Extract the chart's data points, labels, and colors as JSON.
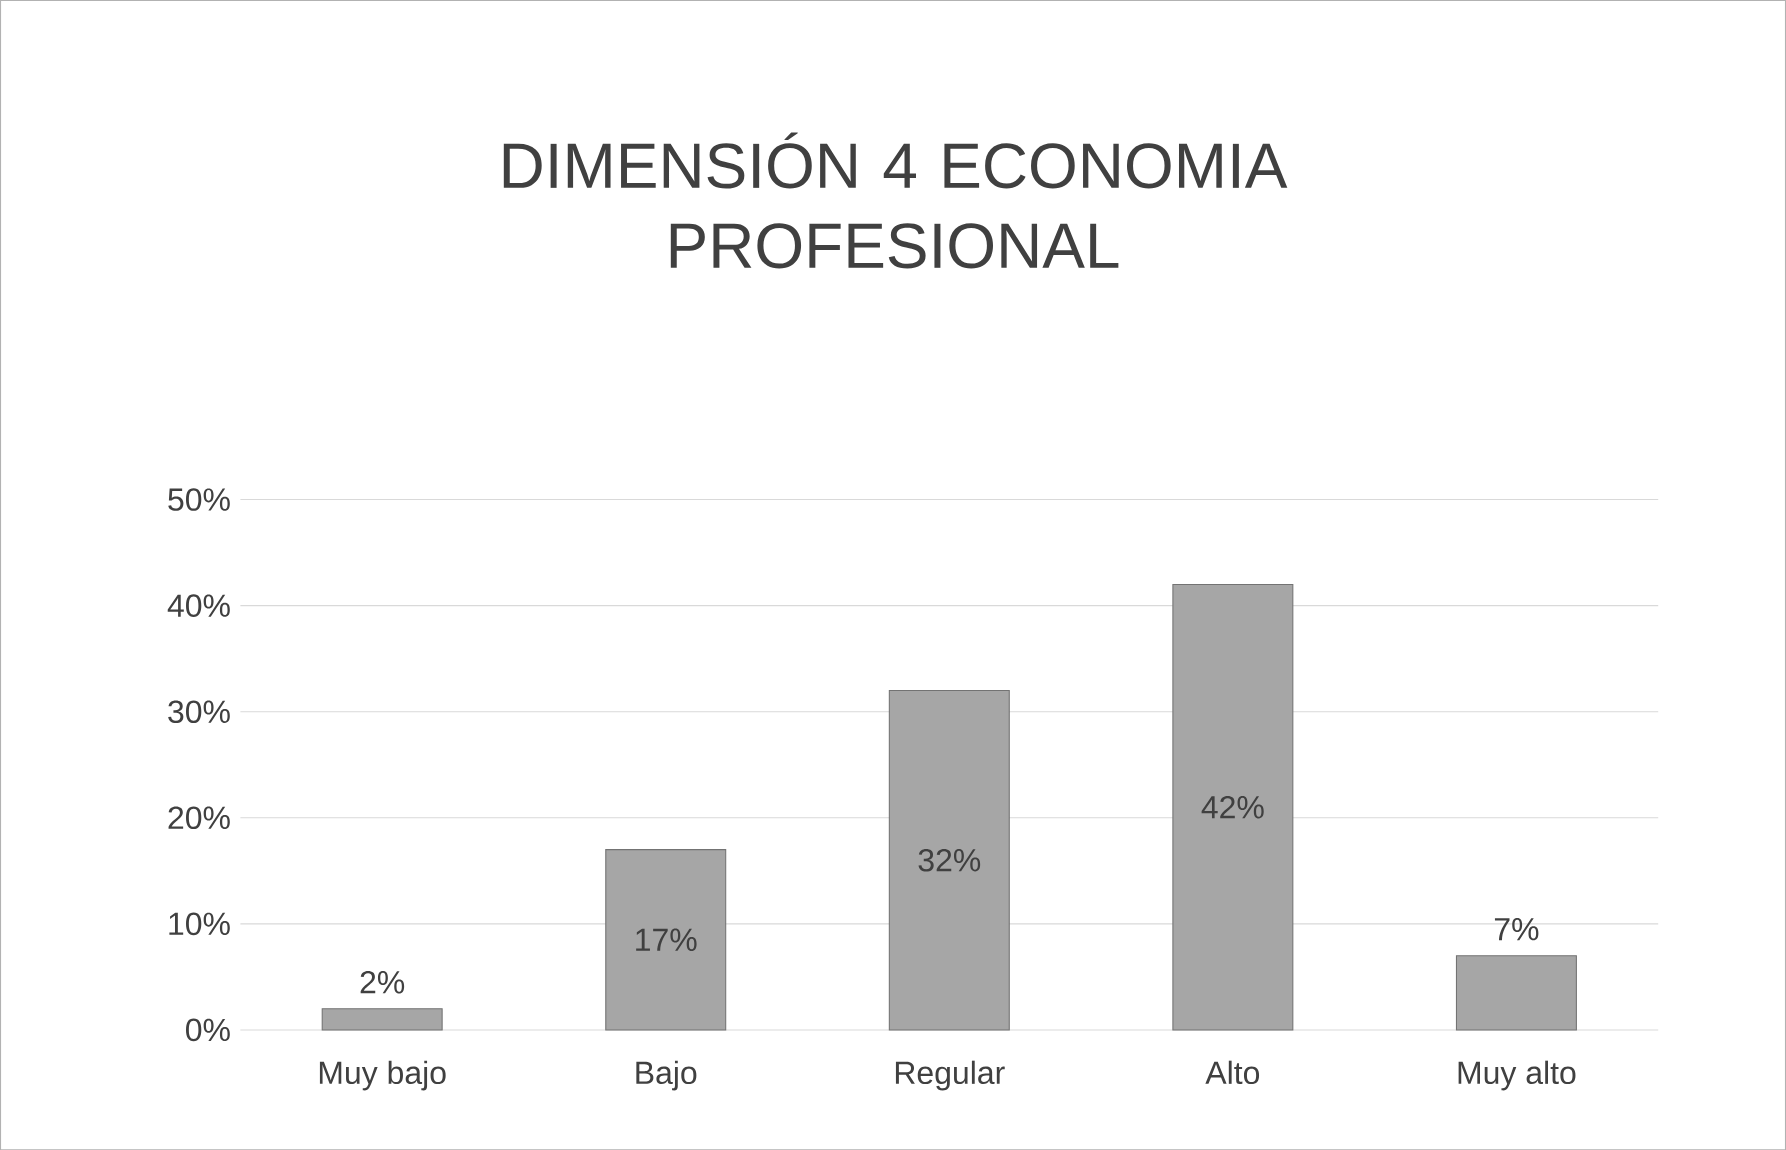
{
  "chart_data": {
    "type": "bar",
    "title": "DIMENSIÓN 4 ECONOMIA PROFESIONAL",
    "categories": [
      "Muy bajo",
      "Bajo",
      "Regular",
      "Alto",
      "Muy alto"
    ],
    "values": [
      2,
      17,
      32,
      42,
      7
    ],
    "value_labels": [
      "2%",
      "17%",
      "32%",
      "42%",
      "7%"
    ],
    "color": "#a6a6a6",
    "ylim": [
      0,
      50
    ],
    "yticks": [
      {
        "value": 0,
        "label": "0%"
      },
      {
        "value": 10,
        "label": "10%"
      },
      {
        "value": 20,
        "label": "20%"
      },
      {
        "value": 30,
        "label": "30%"
      },
      {
        "value": 40,
        "label": "40%"
      },
      {
        "value": 50,
        "label": "50%"
      }
    ],
    "grid": true
  }
}
